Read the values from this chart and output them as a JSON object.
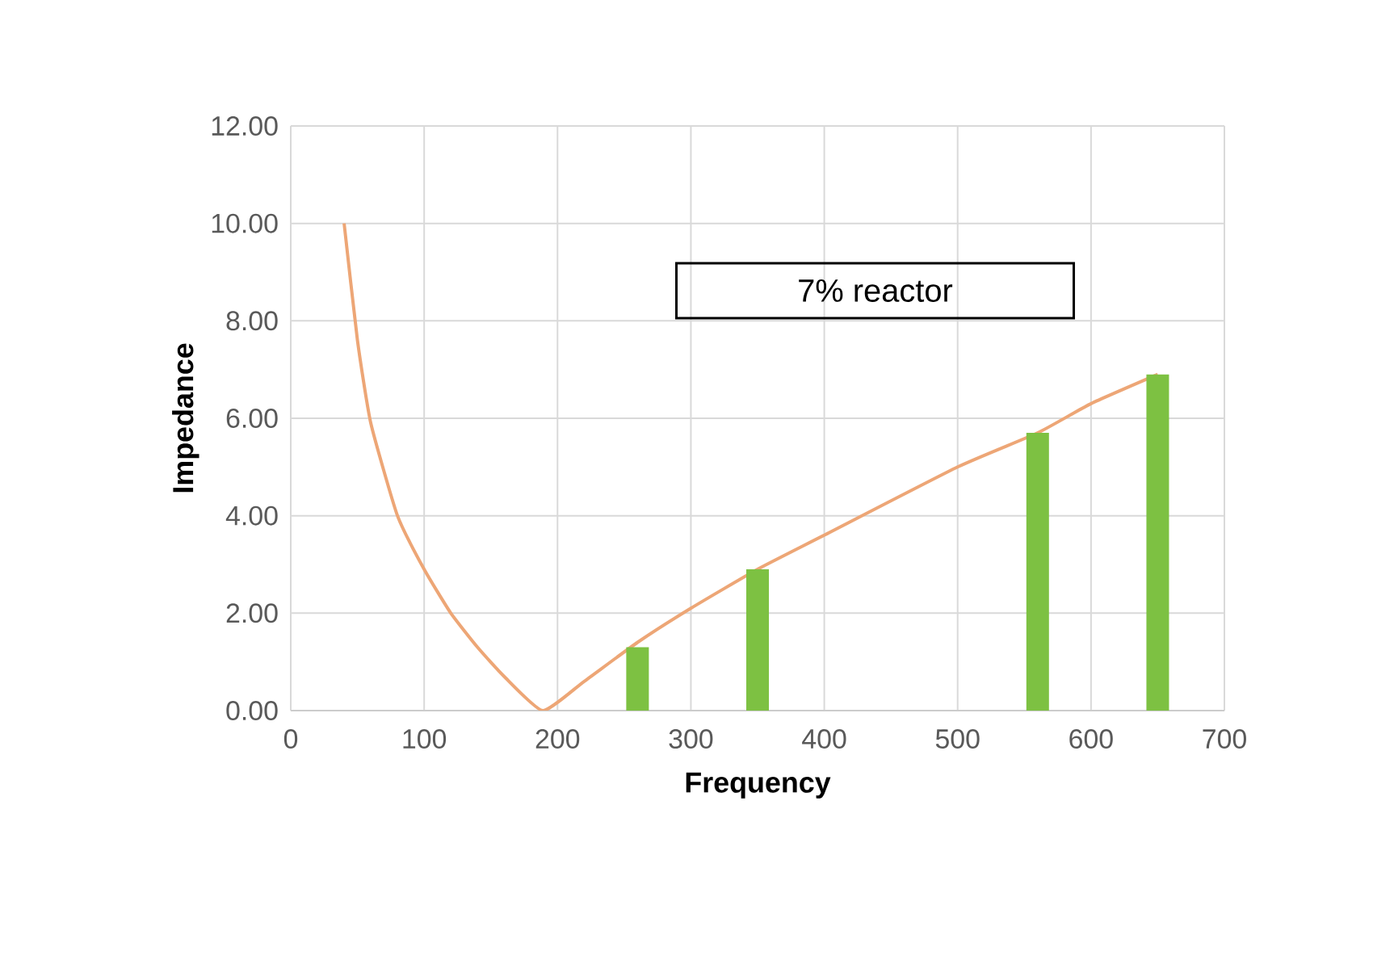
{
  "chart_data": {
    "type": "line",
    "xlabel": "Frequency",
    "ylabel": "Impedance",
    "series": [
      {
        "color": "#eda676",
        "x": [
          40,
          50,
          60,
          80,
          100,
          120,
          140,
          160,
          189,
          220,
          260,
          300,
          350,
          400,
          500,
          560,
          600,
          650
        ],
        "values": [
          10.0,
          7.6,
          5.9,
          4.0,
          2.9,
          2.0,
          1.3,
          0.7,
          0.0,
          0.6,
          1.4,
          2.1,
          2.9,
          3.6,
          5.0,
          5.7,
          6.3,
          6.9
        ]
      },
      {
        "type": "bar",
        "color": "#7dc142",
        "x": [
          260,
          350,
          560,
          650
        ],
        "values": [
          1.3,
          2.9,
          5.7,
          6.9
        ]
      }
    ],
    "xlim": [
      0,
      700
    ],
    "xticks": [
      0,
      100,
      200,
      300,
      400,
      500,
      600,
      700
    ],
    "ylim": [
      0,
      12
    ],
    "yticks": [
      {
        "value": 0,
        "label": "0.00"
      },
      {
        "value": 2,
        "label": "2.00"
      },
      {
        "value": 4,
        "label": "4.00"
      },
      {
        "value": 6,
        "label": "6.00"
      },
      {
        "value": 8,
        "label": "8.00"
      },
      {
        "value": 10,
        "label": "10.00"
      },
      {
        "value": 12,
        "label": "12.00"
      }
    ],
    "grid": true,
    "annotations": [
      "7% reactor"
    ]
  }
}
